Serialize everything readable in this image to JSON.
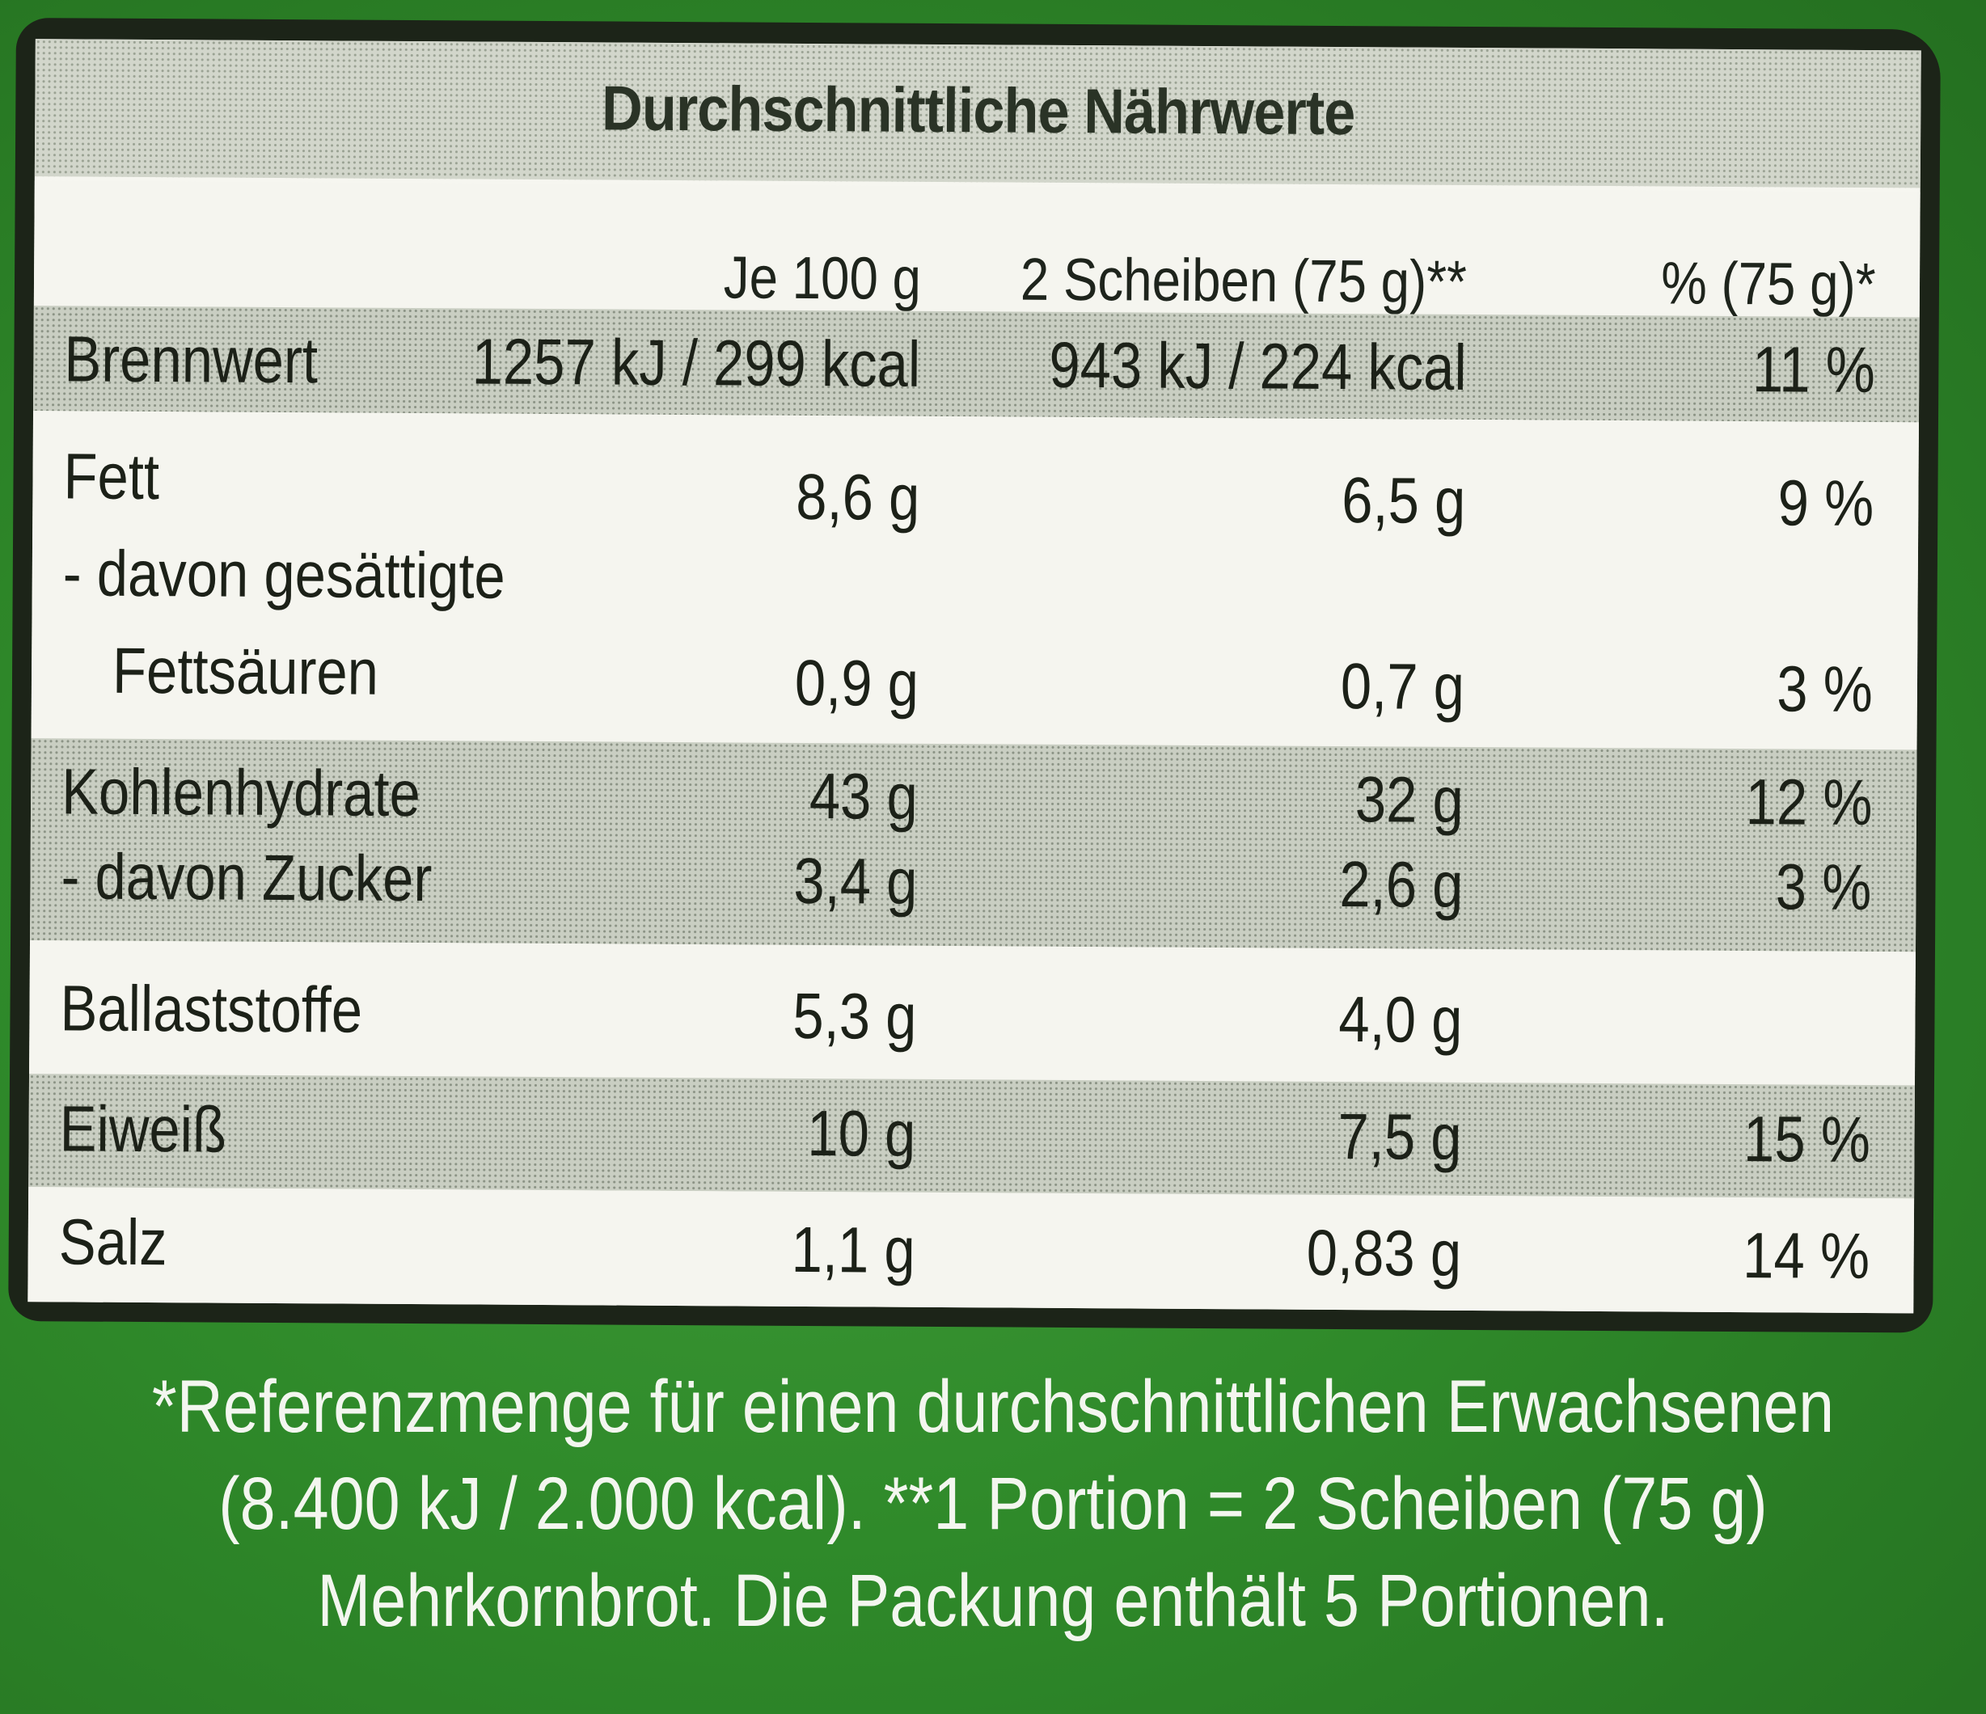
{
  "table": {
    "title": "Durchschnittliche Nährwerte",
    "headers": {
      "per100": "Je 100 g",
      "portion": "2 Scheiben (75 g)**",
      "percent": "% (75 g)*"
    },
    "rows": [
      {
        "label": "Brennwert",
        "per100": "1257 kJ / 299 kcal",
        "portion": "943 kJ / 224 kcal",
        "percent": "11 %"
      },
      {
        "label": "Fett",
        "per100": "8,6 g",
        "portion": "6,5 g",
        "percent": "9 %"
      },
      {
        "label": "- davon gesättigte",
        "per100": "",
        "portion": "",
        "percent": ""
      },
      {
        "label": "Fettsäuren",
        "per100": "0,9 g",
        "portion": "0,7 g",
        "percent": "3 %"
      },
      {
        "label": "Kohlenhydrate",
        "per100": "43 g",
        "portion": "32 g",
        "percent": "12 %"
      },
      {
        "label": "- davon Zucker",
        "per100": "3,4 g",
        "portion": "2,6 g",
        "percent": "3 %"
      },
      {
        "label": "Ballaststoffe",
        "per100": "5,3 g",
        "portion": "4,0 g",
        "percent": ""
      },
      {
        "label": "Eiweiß",
        "per100": "10 g",
        "portion": "7,5 g",
        "percent": "15 %"
      },
      {
        "label": "Salz",
        "per100": "1,1 g",
        "portion": "0,83 g",
        "percent": "14 %"
      }
    ]
  },
  "footnote": {
    "line1": "*Referenzmenge für einen durchschnittlichen Erwachsenen",
    "line2": "(8.400 kJ / 2.000 kcal). **1 Portion = 2 Scheiben (75 g)",
    "line3": "Mehrkornbrot. Die Packung enthält 5 Portionen."
  },
  "colors": {
    "package_green": "#2f8a2a",
    "panel_white": "#f6f6f0",
    "text_dark": "#1c2118",
    "footnote_text": "#f3f6ef"
  }
}
